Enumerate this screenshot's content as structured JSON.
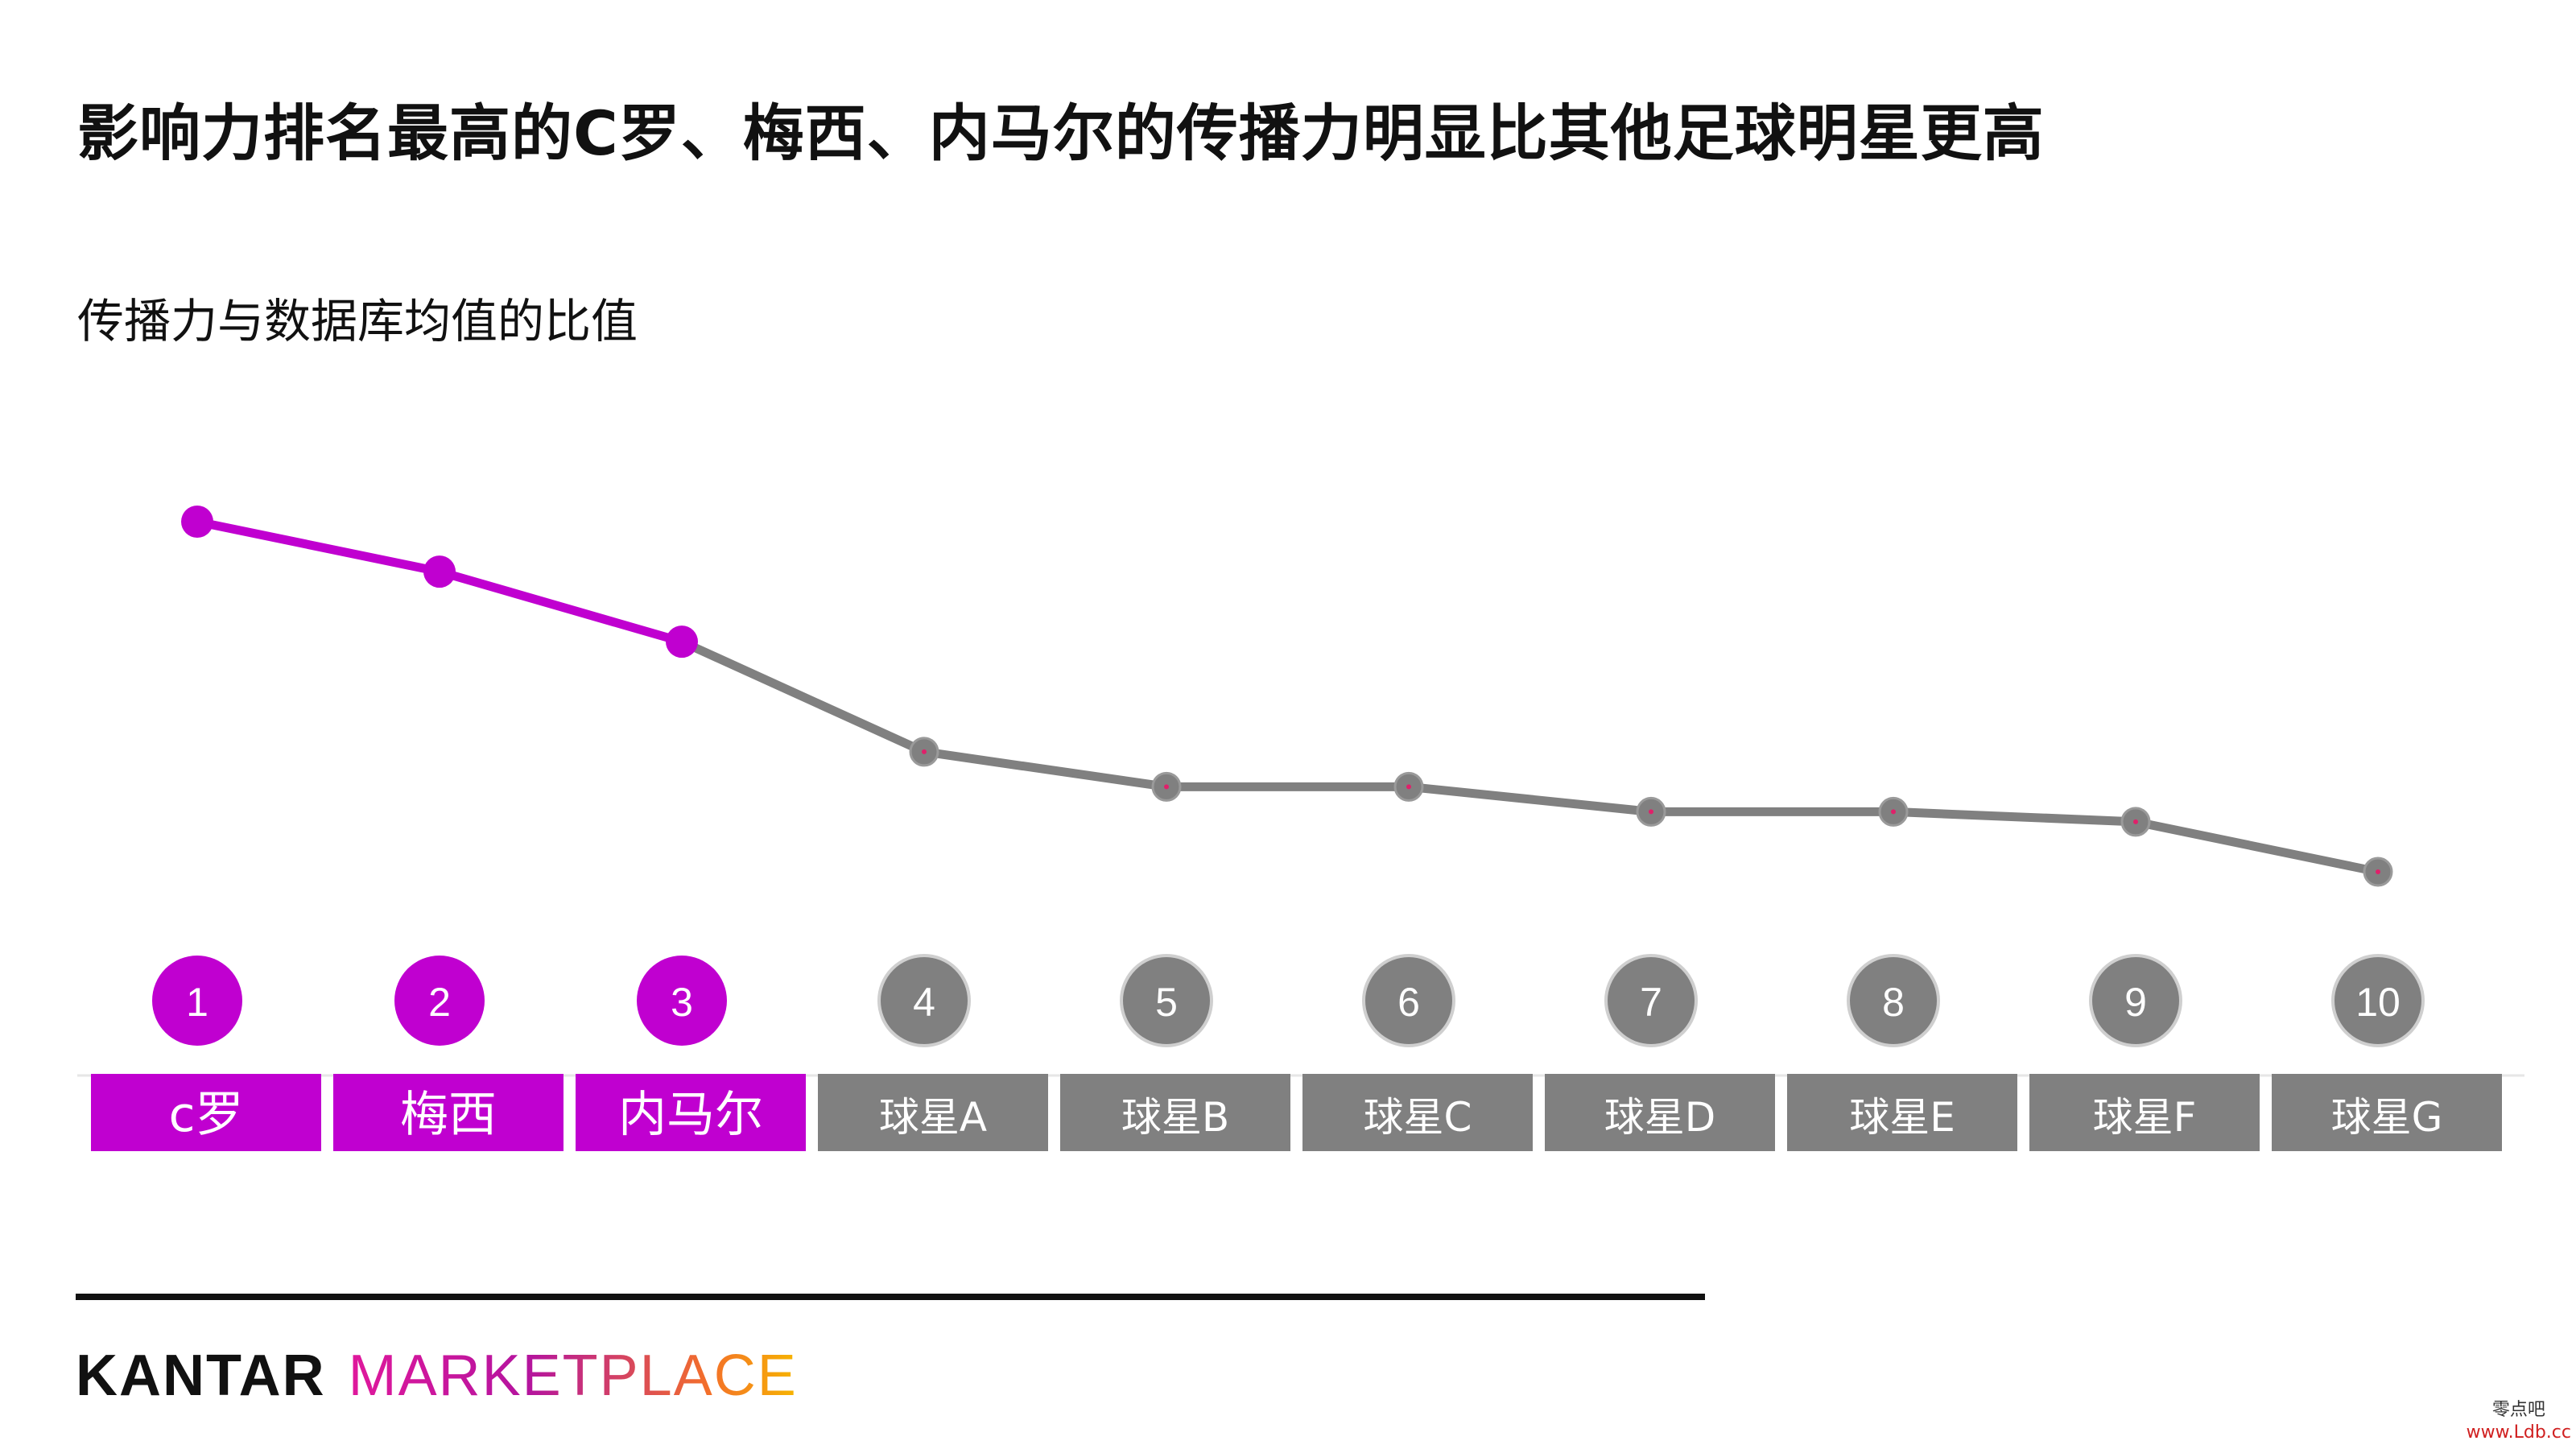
{
  "slide": {
    "title": "影响力排名最高的C罗、梅西、内马尔的传播力明显比其他足球明星更高"
  },
  "chart_data": {
    "type": "line",
    "title": "传播力与数据库均值的比值",
    "xlabel": "",
    "ylabel": "",
    "ranks": [
      "1",
      "2",
      "3",
      "4",
      "5",
      "6",
      "7",
      "8",
      "9",
      "10"
    ],
    "categories": [
      "c罗",
      "梅西",
      "内马尔",
      "球星A",
      "球星B",
      "球星C",
      "球星D",
      "球星E",
      "球星F",
      "球星G"
    ],
    "values": [
      5.8,
      5.3,
      4.6,
      3.5,
      3.15,
      3.15,
      2.9,
      2.9,
      2.8,
      2.3
    ],
    "highlight_count": 3,
    "ylim": [
      0,
      6
    ],
    "grid": false,
    "legend": "none",
    "colors": {
      "highlight": "#c000d0",
      "normal": "#808080",
      "label_text": "#ffffff"
    }
  },
  "brand": {
    "kantar": "KANTAR",
    "marketplace": "MARKETPLACE"
  },
  "watermark": {
    "top": "零点吧",
    "bottom": "www.Ldb.cc"
  }
}
